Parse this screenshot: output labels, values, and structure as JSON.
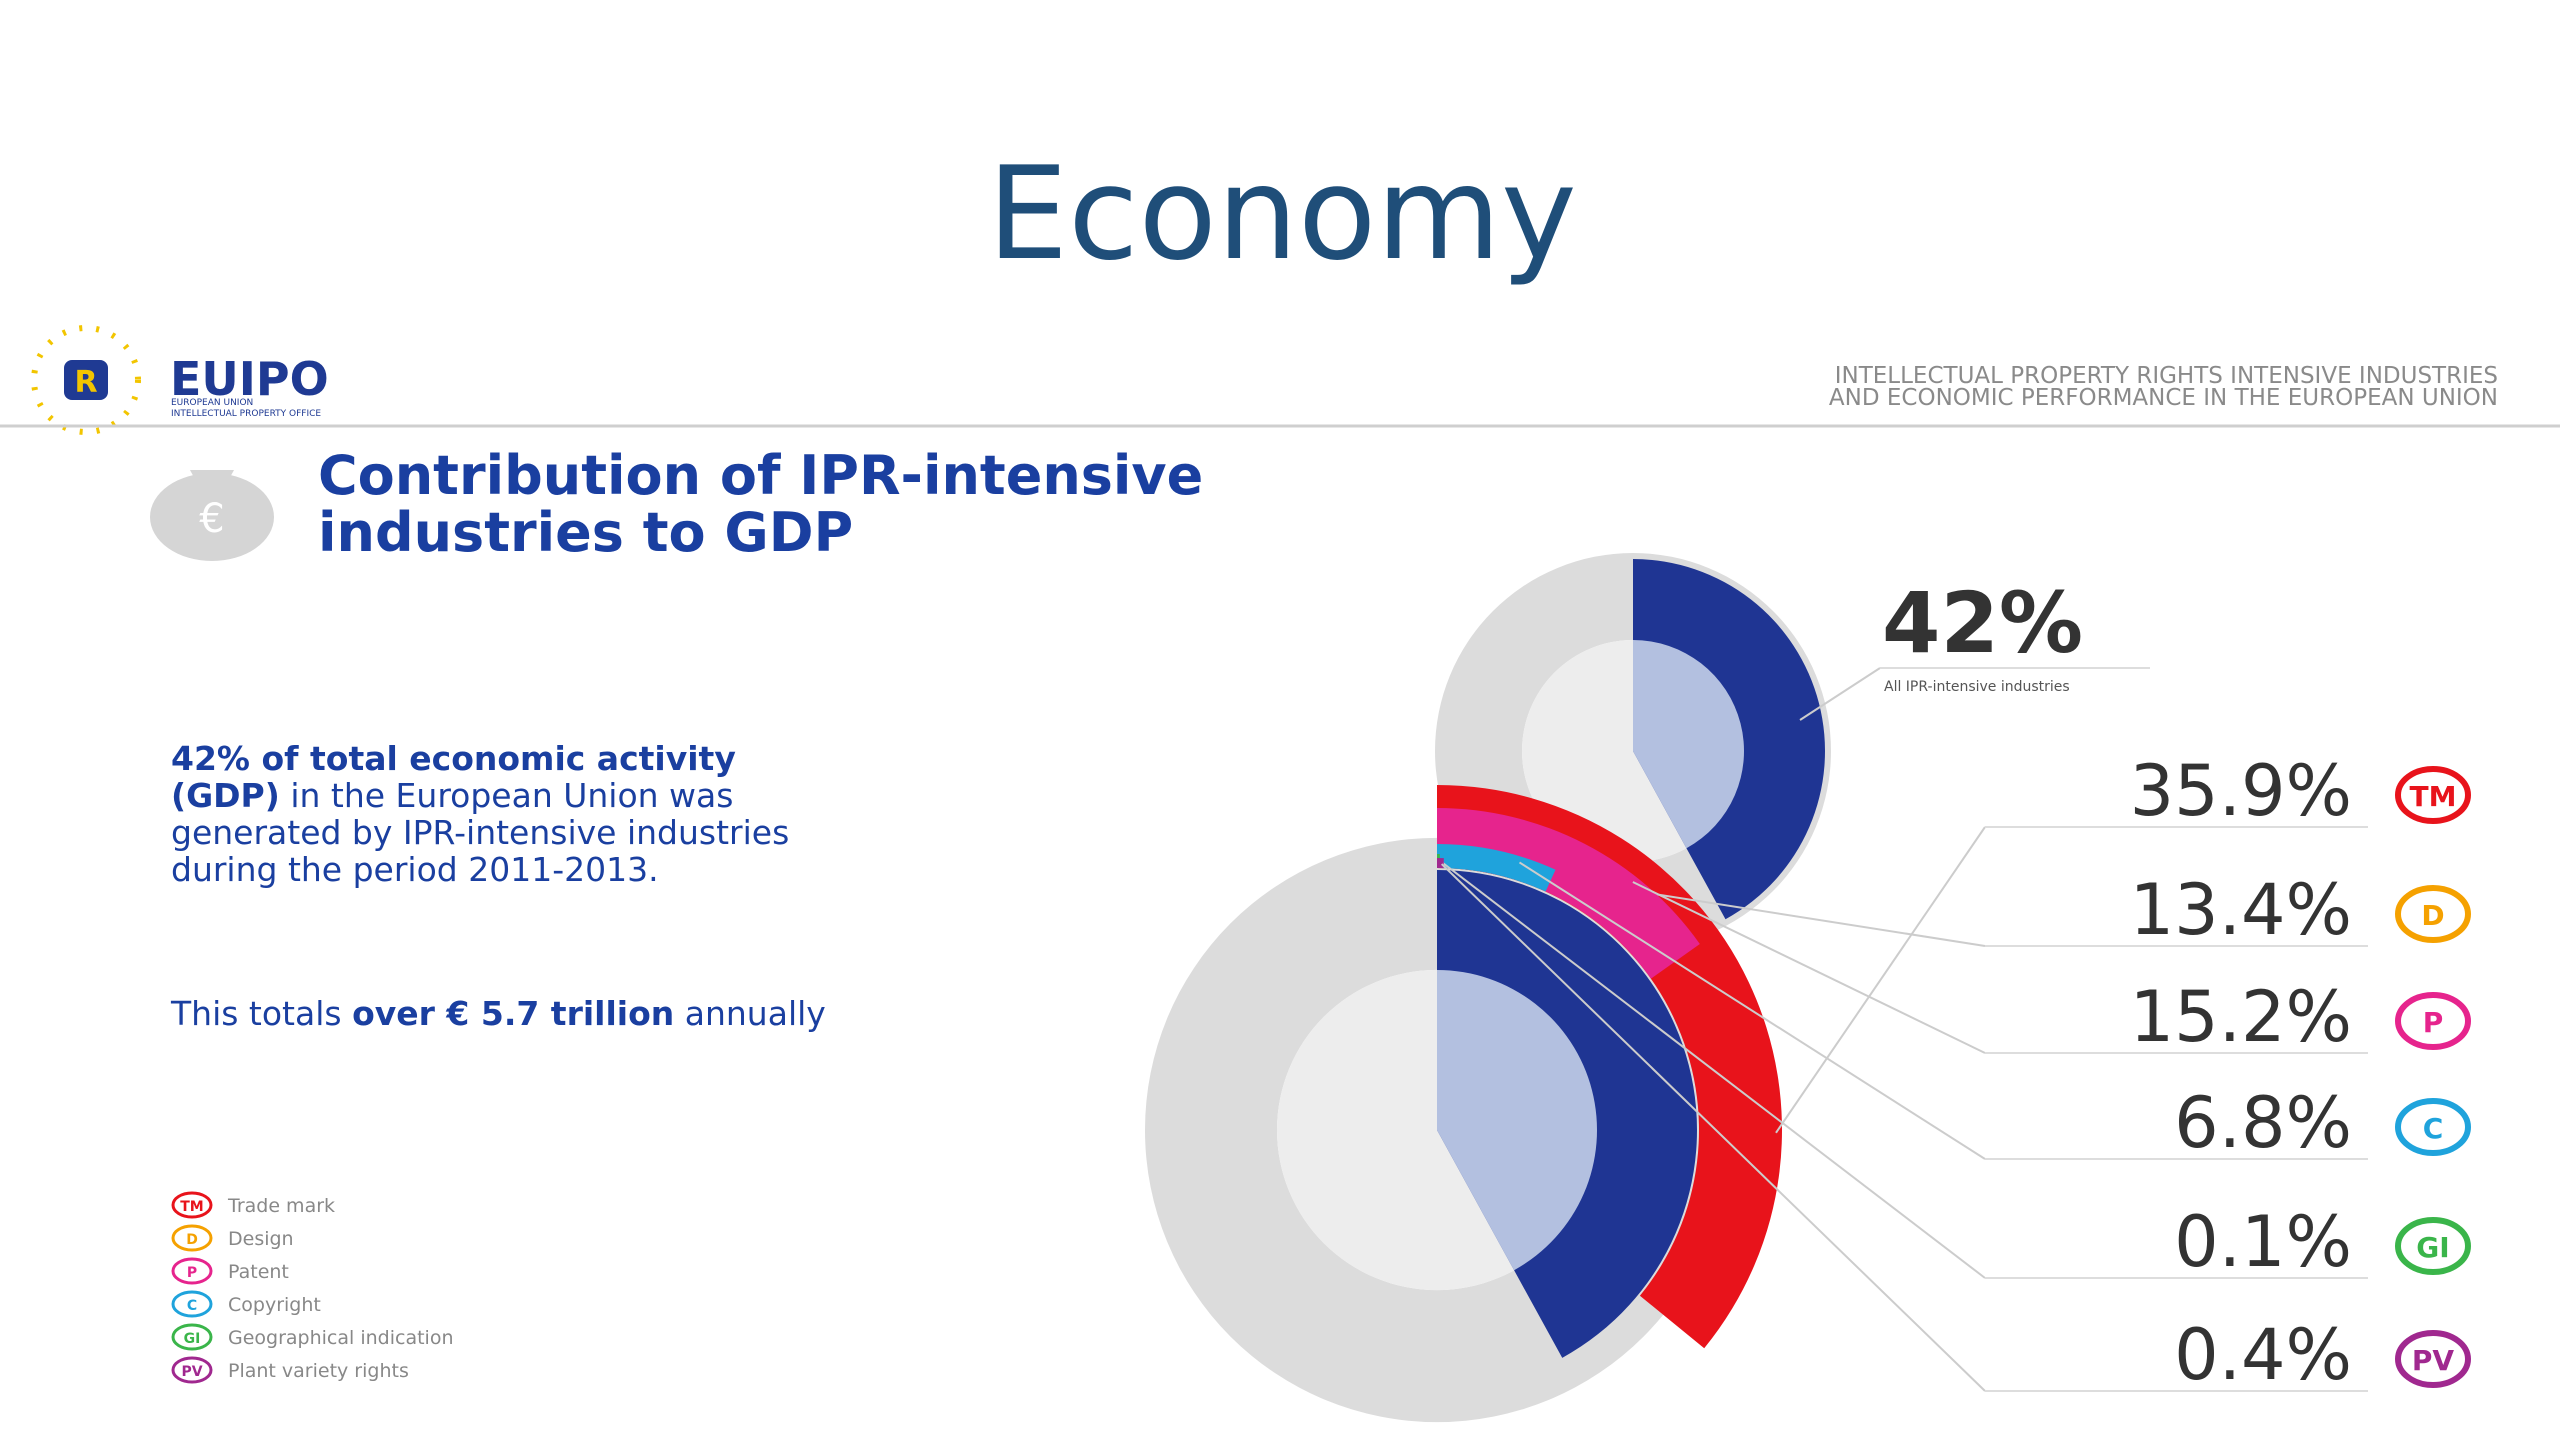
{
  "title": "Economy",
  "header": {
    "brand": "EUIPO",
    "brand_sub": [
      "EUROPEAN UNION",
      "INTELLECTUAL PROPERTY OFFICE"
    ],
    "report": [
      "INTELLECTUAL PROPERTY RIGHTS INTENSIVE INDUSTRIES",
      "AND ECONOMIC PERFORMANCE IN THE EUROPEAN UNION"
    ]
  },
  "heading": [
    "Contribution of IPR-intensive",
    "industries to GDP"
  ],
  "body": {
    "intro_bold": "42% of total economic activity (GDP)",
    "intro_rest": " in the European Union was generated by IPR-intensive industries during the period 2011-2013.",
    "total_text": "This totals ",
    "total_bold": "over € 5.7 trillion",
    "total_rest": " annually"
  },
  "chart_data": [
    {
      "type": "donut",
      "values": [
        42
      ],
      "value_labels": [
        "42%"
      ],
      "caption": "All IPR-intensive industries",
      "color": "#1f3593"
    },
    {
      "type": "nested-arcs",
      "categories": [
        "Trade mark",
        "Design",
        "Patent",
        "Copyright",
        "Geographical indication",
        "Plant variety rights"
      ],
      "icons": [
        "TM",
        "D",
        "P",
        "C",
        "GI",
        "PV"
      ],
      "values": [
        35.9,
        13.4,
        15.2,
        6.8,
        0.1,
        0.4
      ],
      "value_labels": [
        "35.9%",
        "13.4%",
        "15.2%",
        "6.8%",
        "0.1%",
        "0.4%"
      ],
      "colors": [
        "#e8131b",
        "#f5a100",
        "#e6248d",
        "#1fa3dc",
        "#3ab54a",
        "#a0288f"
      ]
    }
  ]
}
